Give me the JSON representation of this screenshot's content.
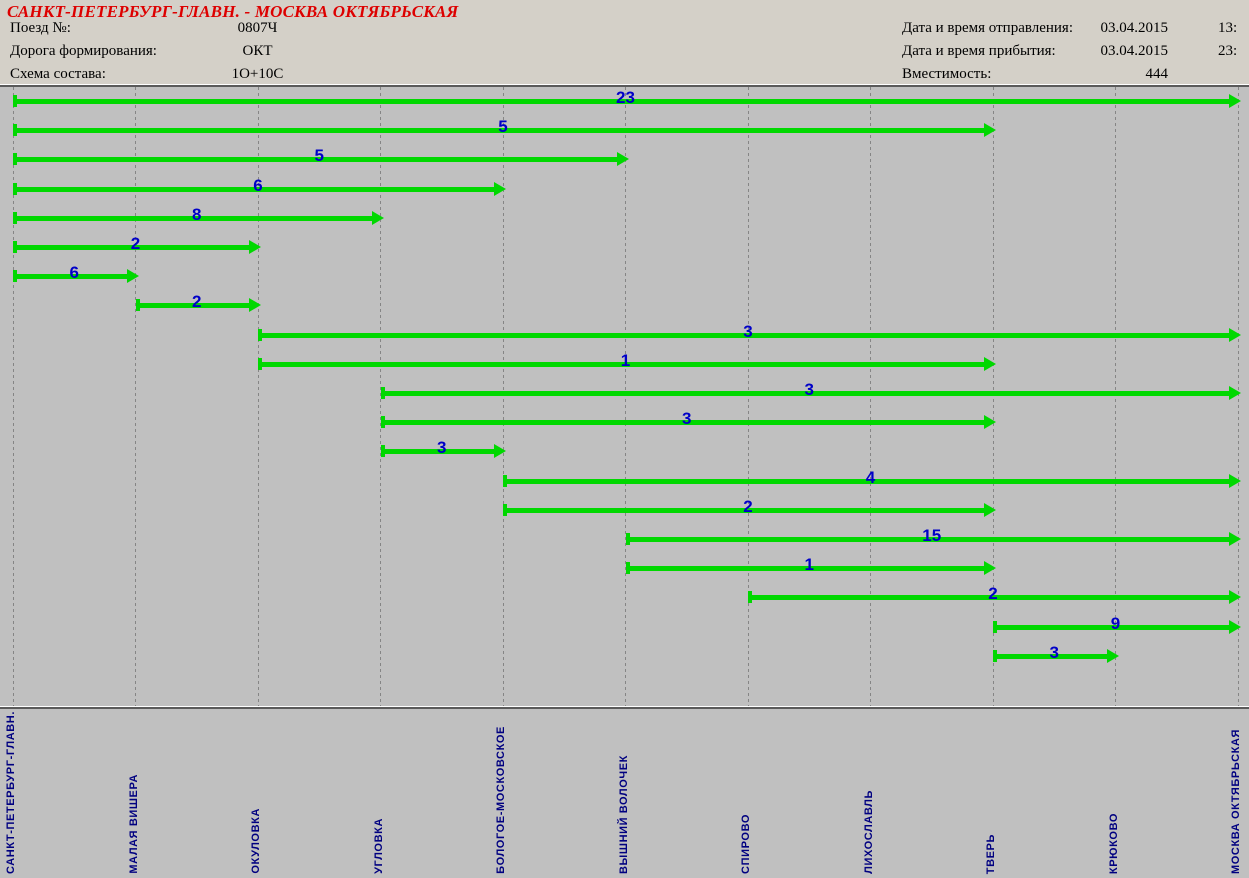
{
  "header": {
    "title": "САНКТ-ПЕТЕРБУРГ-ГЛАВН. - МОСКВА ОКТЯБРЬСКАЯ",
    "left_fields": [
      {
        "label": "Поезд №:",
        "value": "0807Ч"
      },
      {
        "label": "Дорога формирования:",
        "value": "ОКТ"
      },
      {
        "label": "Схема состава:",
        "value": "1О+10С"
      }
    ],
    "right_fields": [
      {
        "label": "Дата и время отправления:",
        "value": "03.04.2015",
        "extra": "13:"
      },
      {
        "label": "Дата и время прибытия:",
        "value": "03.04.2015",
        "extra": "23:"
      },
      {
        "label": "Вместимость:",
        "value": "444",
        "extra": ""
      }
    ]
  },
  "chart_data": {
    "type": "gantt-route-occupancy",
    "stations": [
      "САНКТ-ПЕТЕРБУРГ-ГЛАВН.",
      "МАЛАЯ ВИШЕРА",
      "ОКУЛОВКА",
      "УГЛОВКА",
      "БОЛОГОЕ-МОСКОВСКОЕ",
      "ВЫШНИЙ ВОЛОЧЕК",
      "СПИРОВО",
      "ЛИХОСЛАВЛЬ",
      "ТВЕРЬ",
      "КРЮКОВО",
      "МОСКВА ОКТЯБРЬСКАЯ"
    ],
    "segments": [
      {
        "from": 0,
        "to": 10,
        "count": "23"
      },
      {
        "from": 0,
        "to": 8,
        "count": "5"
      },
      {
        "from": 0,
        "to": 5,
        "count": "5"
      },
      {
        "from": 0,
        "to": 4,
        "count": "6"
      },
      {
        "from": 0,
        "to": 3,
        "count": "8"
      },
      {
        "from": 0,
        "to": 2,
        "count": "2"
      },
      {
        "from": 0,
        "to": 1,
        "count": "6"
      },
      {
        "from": 1,
        "to": 2,
        "count": "2"
      },
      {
        "from": 2,
        "to": 10,
        "count": "3"
      },
      {
        "from": 2,
        "to": 8,
        "count": "1"
      },
      {
        "from": 3,
        "to": 10,
        "count": "3"
      },
      {
        "from": 3,
        "to": 8,
        "count": "3"
      },
      {
        "from": 3,
        "to": 4,
        "count": "3"
      },
      {
        "from": 4,
        "to": 10,
        "count": "4"
      },
      {
        "from": 4,
        "to": 8,
        "count": "2"
      },
      {
        "from": 5,
        "to": 10,
        "count": "15"
      },
      {
        "from": 5,
        "to": 8,
        "count": "1"
      },
      {
        "from": 6,
        "to": 10,
        "count": "2"
      },
      {
        "from": 8,
        "to": 10,
        "count": "9"
      },
      {
        "from": 8,
        "to": 9,
        "count": "3"
      }
    ],
    "legend": "grid off, no numeric axes; x = stations, one row per sold segment, label = count",
    "colors": {
      "arrow": "#00D800",
      "count_label": "#0000C8",
      "station_label": "#000080",
      "gridline": "#858585",
      "title": "#DD0000"
    }
  }
}
